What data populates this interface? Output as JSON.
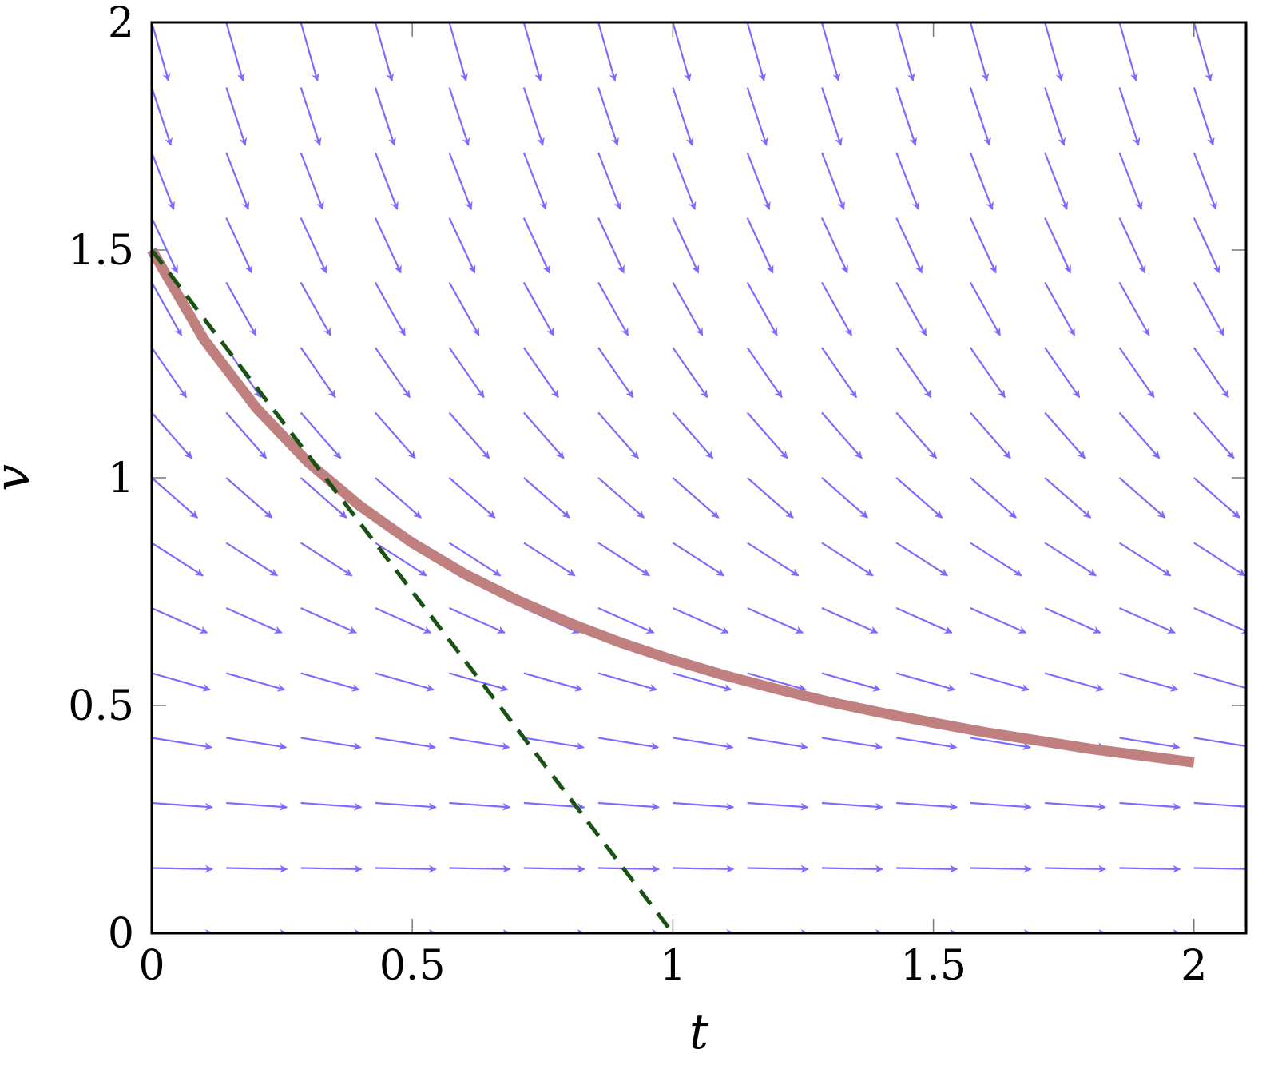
{
  "chart_data": {
    "type": "line",
    "xlabel": "t",
    "ylabel": "v",
    "xlim": [
      0,
      2.1
    ],
    "ylim": [
      0,
      2
    ],
    "xticks": [
      0,
      0.5,
      1,
      1.5,
      2
    ],
    "xtick_labels": [
      "0",
      "0.5",
      "1",
      "1.5",
      "2"
    ],
    "yticks": [
      0,
      0.5,
      1,
      1.5,
      2
    ],
    "ytick_labels": [
      "0",
      "0.5",
      "1",
      "1.5",
      "2"
    ],
    "grid": false,
    "slope_field": {
      "equation": "dv/dt = -v^2",
      "t_values": [
        0,
        0.143,
        0.286,
        0.429,
        0.571,
        0.714,
        0.857,
        1.0,
        1.143,
        1.286,
        1.429,
        1.571,
        1.714,
        1.857,
        2.0
      ],
      "v_values": [
        0,
        0.143,
        0.286,
        0.429,
        0.571,
        0.714,
        0.857,
        1.0,
        1.143,
        1.286,
        1.429,
        1.571,
        1.714,
        1.857,
        2.0
      ],
      "color": "#7b6cff"
    },
    "series": [
      {
        "style": "solid",
        "color": "#c08080",
        "x": [
          0,
          0.1,
          0.2,
          0.3,
          0.4,
          0.5,
          0.6,
          0.7,
          0.8,
          0.9,
          1.0,
          1.1,
          1.2,
          1.3,
          1.4,
          1.5,
          1.6,
          1.7,
          1.8,
          1.9,
          2.0
        ],
        "y": [
          1.5,
          1.304,
          1.154,
          1.034,
          0.938,
          0.857,
          0.789,
          0.732,
          0.682,
          0.638,
          0.6,
          0.566,
          0.536,
          0.508,
          0.484,
          0.462,
          0.441,
          0.423,
          0.405,
          0.39,
          0.375
        ]
      },
      {
        "style": "dashed",
        "color": "#1a5214",
        "x": [
          0,
          1.0
        ],
        "y": [
          1.5,
          0
        ]
      }
    ]
  }
}
